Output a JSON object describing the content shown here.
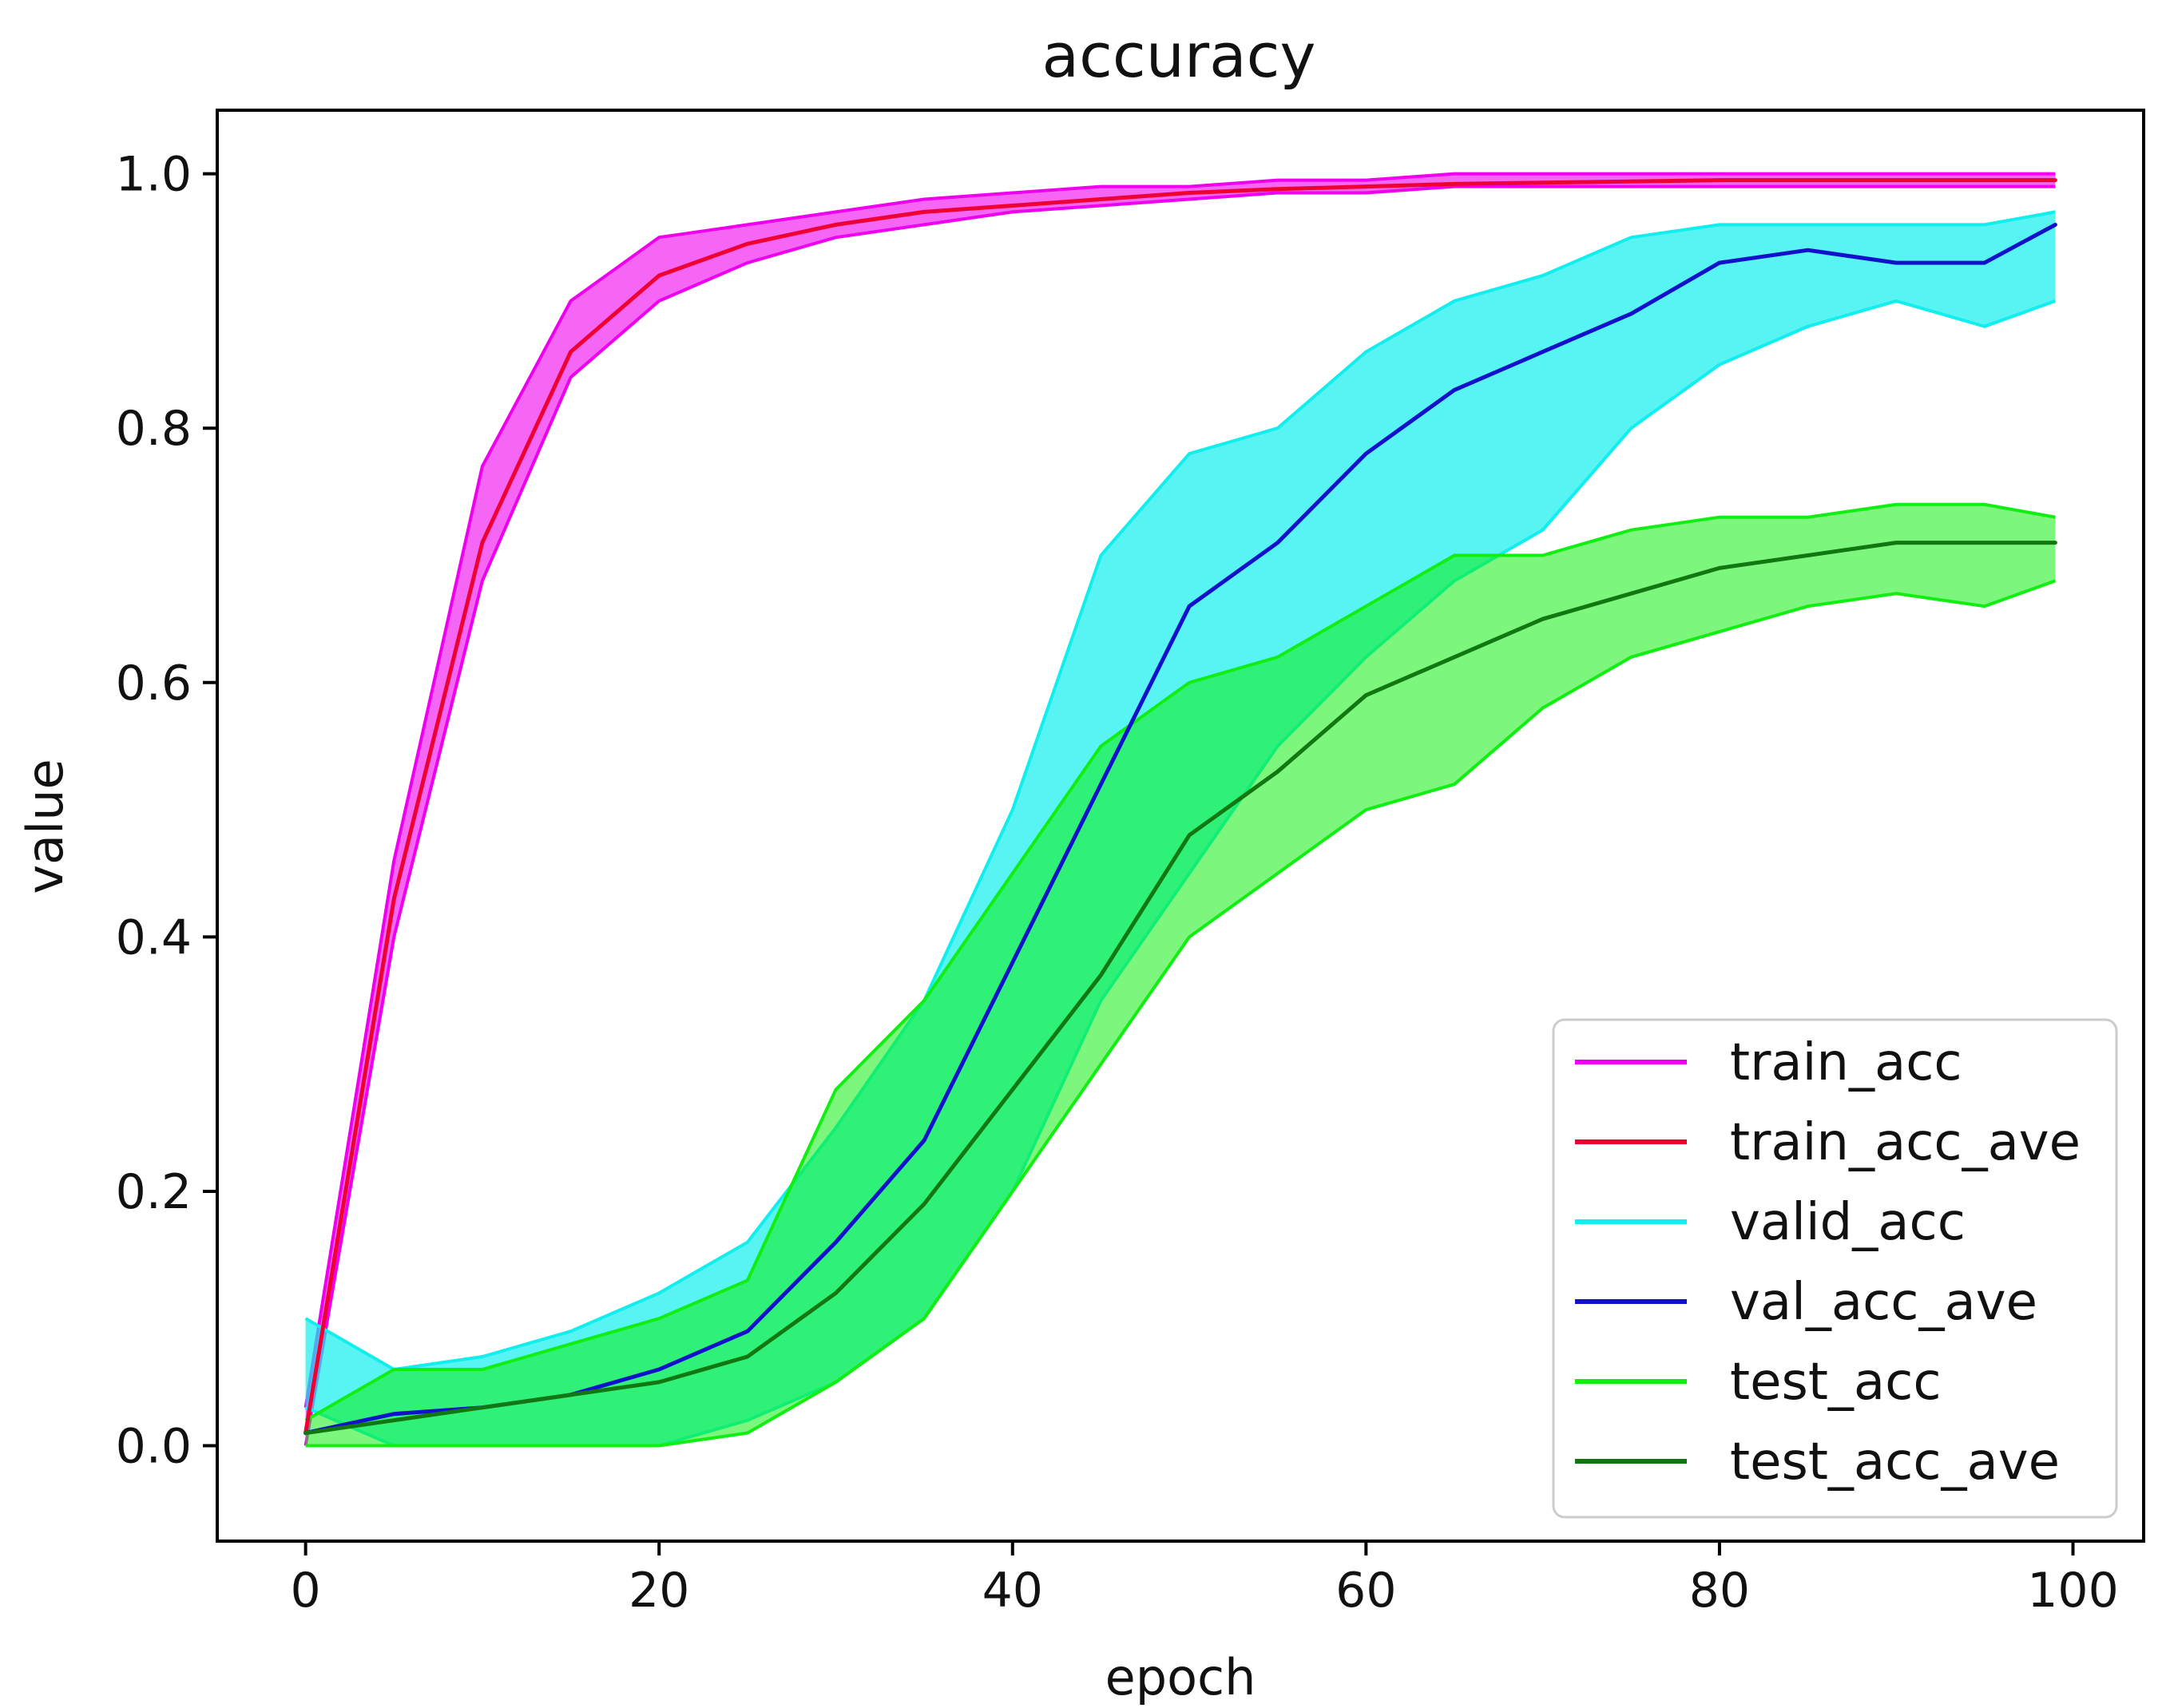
{
  "chart_data": {
    "type": "line",
    "title": "accuracy",
    "xlabel": "epoch",
    "ylabel": "value",
    "xlim": [
      -5,
      104
    ],
    "ylim": [
      -0.075,
      1.05
    ],
    "xticks": [
      0,
      20,
      40,
      60,
      80,
      100
    ],
    "xtick_labels": [
      "0",
      "20",
      "40",
      "60",
      "80",
      "100"
    ],
    "yticks": [
      0.0,
      0.2,
      0.4,
      0.6,
      0.8,
      1.0
    ],
    "ytick_labels": [
      "0.0",
      "0.2",
      "0.4",
      "0.6",
      "0.8",
      "1.0"
    ],
    "grid": false,
    "legend_position": "lower-right",
    "x": [
      0,
      5,
      10,
      15,
      20,
      25,
      30,
      35,
      40,
      45,
      50,
      55,
      60,
      65,
      70,
      75,
      80,
      85,
      90,
      95,
      99
    ],
    "bands": [
      {
        "name": "train_acc",
        "color": "#ee00ee",
        "fill_opacity": 0.6,
        "lower": [
          0.0,
          0.4,
          0.68,
          0.84,
          0.9,
          0.93,
          0.95,
          0.96,
          0.97,
          0.975,
          0.98,
          0.985,
          0.985,
          0.99,
          0.99,
          0.99,
          0.99,
          0.99,
          0.99,
          0.99,
          0.99
        ],
        "upper": [
          0.03,
          0.46,
          0.77,
          0.9,
          0.95,
          0.96,
          0.97,
          0.98,
          0.985,
          0.99,
          0.99,
          0.995,
          0.995,
          1.0,
          1.0,
          1.0,
          1.0,
          1.0,
          1.0,
          1.0,
          1.0
        ]
      },
      {
        "name": "valid_acc",
        "color": "#11eeee",
        "fill_opacity": 0.7,
        "lower": [
          0.03,
          0.0,
          0.0,
          0.0,
          0.0,
          0.02,
          0.05,
          0.1,
          0.2,
          0.35,
          0.45,
          0.55,
          0.62,
          0.68,
          0.72,
          0.8,
          0.85,
          0.88,
          0.9,
          0.88,
          0.9
        ],
        "upper": [
          0.1,
          0.06,
          0.07,
          0.09,
          0.12,
          0.16,
          0.25,
          0.35,
          0.5,
          0.7,
          0.78,
          0.8,
          0.86,
          0.9,
          0.92,
          0.95,
          0.96,
          0.96,
          0.96,
          0.96,
          0.97
        ]
      },
      {
        "name": "test_acc",
        "color": "#11ee11",
        "fill_opacity": 0.55,
        "lower": [
          0.0,
          0.0,
          0.0,
          0.0,
          0.0,
          0.01,
          0.05,
          0.1,
          0.2,
          0.3,
          0.4,
          0.45,
          0.5,
          0.52,
          0.58,
          0.62,
          0.64,
          0.66,
          0.67,
          0.66,
          0.68
        ],
        "upper": [
          0.02,
          0.06,
          0.06,
          0.08,
          0.1,
          0.13,
          0.28,
          0.35,
          0.45,
          0.55,
          0.6,
          0.62,
          0.66,
          0.7,
          0.7,
          0.72,
          0.73,
          0.73,
          0.74,
          0.74,
          0.73
        ]
      }
    ],
    "series": [
      {
        "name": "train_acc_ave",
        "color": "#ee0033",
        "values": [
          0.01,
          0.43,
          0.71,
          0.86,
          0.92,
          0.945,
          0.96,
          0.97,
          0.975,
          0.98,
          0.985,
          0.988,
          0.99,
          0.992,
          0.993,
          0.994,
          0.995,
          0.995,
          0.995,
          0.995,
          0.995
        ]
      },
      {
        "name": "val_acc_ave",
        "color": "#1111cc",
        "values": [
          0.01,
          0.025,
          0.03,
          0.04,
          0.06,
          0.09,
          0.16,
          0.24,
          0.38,
          0.52,
          0.66,
          0.71,
          0.78,
          0.83,
          0.86,
          0.89,
          0.93,
          0.94,
          0.93,
          0.93,
          0.96
        ]
      },
      {
        "name": "test_acc_ave",
        "color": "#117711",
        "values": [
          0.01,
          0.02,
          0.03,
          0.04,
          0.05,
          0.07,
          0.12,
          0.19,
          0.28,
          0.37,
          0.48,
          0.53,
          0.59,
          0.62,
          0.65,
          0.67,
          0.69,
          0.7,
          0.71,
          0.71,
          0.71
        ]
      }
    ],
    "legend": [
      {
        "label": "train_acc",
        "color": "#ee00ee"
      },
      {
        "label": "train_acc_ave",
        "color": "#ee0033"
      },
      {
        "label": "valid_acc",
        "color": "#11eeee"
      },
      {
        "label": "val_acc_ave",
        "color": "#1111cc"
      },
      {
        "label": "test_acc",
        "color": "#11ee11"
      },
      {
        "label": "test_acc_ave",
        "color": "#117711"
      }
    ]
  }
}
